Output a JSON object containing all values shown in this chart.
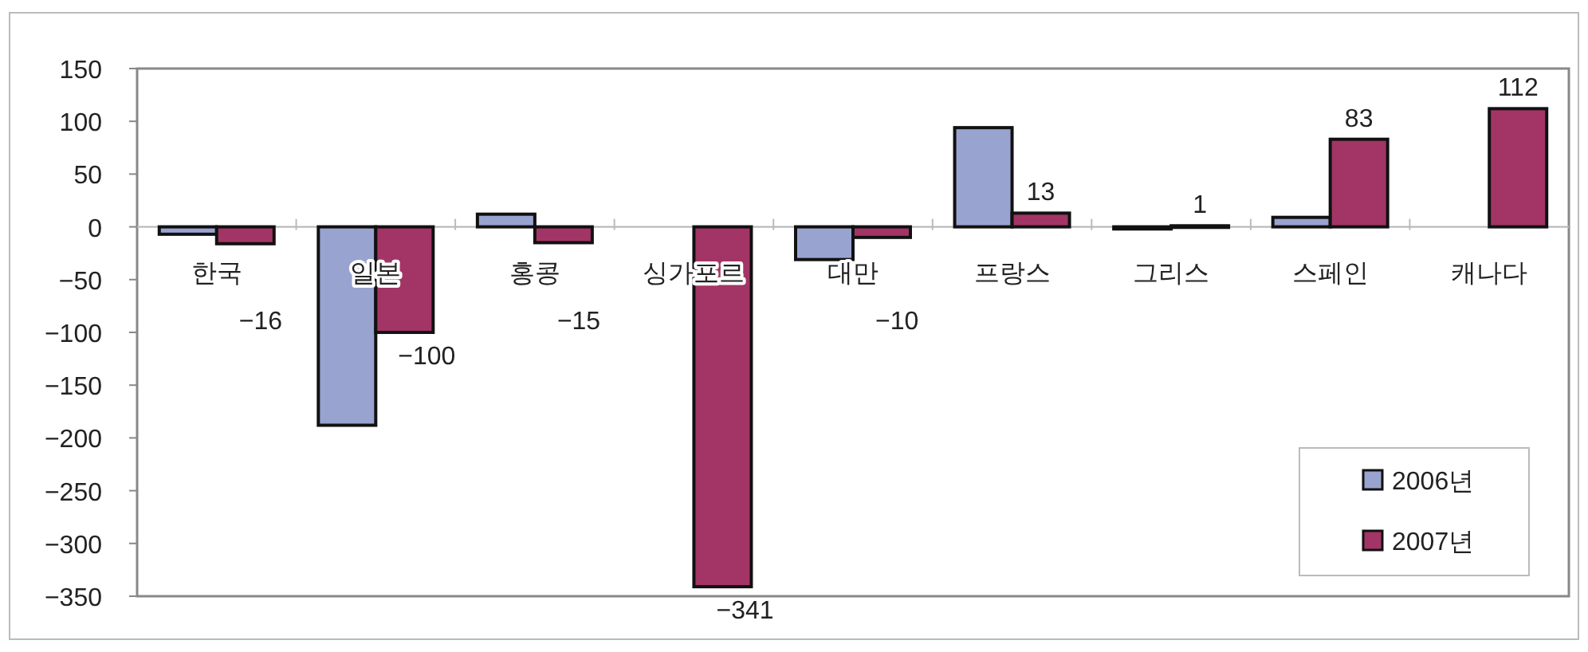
{
  "chart_data": {
    "type": "bar",
    "categories": [
      "한국",
      "일본",
      "홍콩",
      "싱가포르",
      "대만",
      "프랑스",
      "그리스",
      "스페인",
      "캐나다"
    ],
    "series": [
      {
        "name": "2006년",
        "color": "#99a3cf",
        "values": [
          -7,
          -188,
          12,
          null,
          -31,
          94,
          -2,
          9,
          null
        ]
      },
      {
        "name": "2007년",
        "color": "#a33566",
        "values": [
          -16,
          -100,
          -15,
          -341,
          -10,
          13,
          1,
          83,
          112
        ],
        "value_labels": [
          "−16",
          "−100",
          "−15",
          "−341",
          "−10",
          "13",
          "1",
          "83",
          "112"
        ]
      }
    ],
    "ylim": [
      -350,
      150
    ],
    "yticks": [
      -350,
      -300,
      -250,
      -200,
      -150,
      -100,
      -50,
      0,
      50,
      100,
      150
    ],
    "grid": false,
    "legend": "bottom right"
  }
}
